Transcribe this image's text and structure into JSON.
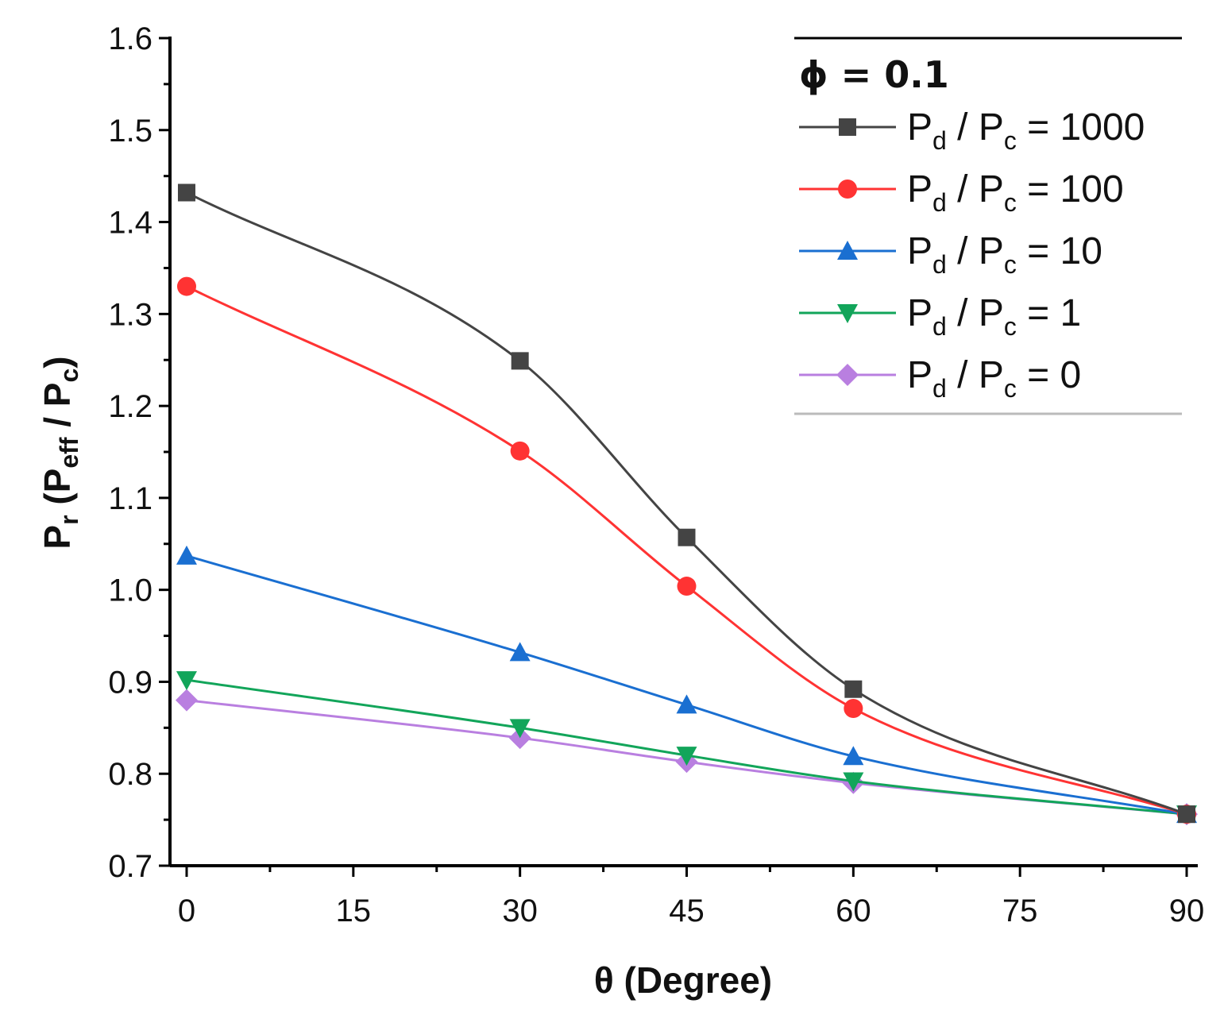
{
  "chart_data": {
    "type": "line",
    "title": "",
    "xlabel": "θ (Degree)",
    "ylabel": {
      "main": "P",
      "sub_r": "r",
      "open": " (P",
      "sub_eff": "eff",
      "slash": " / P",
      "sub_c": "c",
      "close": ")"
    },
    "xlim": [
      -1.5,
      91
    ],
    "ylim": [
      0.7,
      1.6
    ],
    "x": [
      0,
      30,
      45,
      60,
      90
    ],
    "xticks": [
      0,
      15,
      30,
      45,
      60,
      75,
      90
    ],
    "yticks": [
      0.7,
      0.8,
      0.9,
      1.0,
      1.1,
      1.2,
      1.3,
      1.4,
      1.5,
      1.6
    ],
    "xtick_labels": [
      "0",
      "15",
      "30",
      "45",
      "60",
      "75",
      "90"
    ],
    "ytick_labels": [
      "0.7",
      "0.8",
      "0.9",
      "1.0",
      "1.1",
      "1.2",
      "1.3",
      "1.4",
      "1.5",
      "1.6"
    ],
    "legend": {
      "position": "top-right",
      "title": "ϕ = 0.1",
      "label_parts": {
        "p": "P",
        "d": "d",
        "slash": " / P",
        "c": "c",
        "eq": " = "
      }
    },
    "series": [
      {
        "name": "Pd / Pc = 1000",
        "ratio": "1000",
        "marker": "square",
        "color": "#444444",
        "values": [
          1.432,
          1.249,
          1.057,
          0.892,
          0.756
        ]
      },
      {
        "name": "Pd / Pc = 100",
        "ratio": "100",
        "marker": "circle",
        "color": "#ff3333",
        "values": [
          1.33,
          1.151,
          1.004,
          0.871,
          0.756
        ]
      },
      {
        "name": "Pd / Pc = 10",
        "ratio": "10",
        "marker": "triangle-up",
        "color": "#1a6fd1",
        "values": [
          1.037,
          0.932,
          0.875,
          0.819,
          0.756
        ]
      },
      {
        "name": "Pd / Pc = 1",
        "ratio": "1",
        "marker": "triangle-down",
        "color": "#12a55a",
        "values": [
          0.902,
          0.85,
          0.82,
          0.792,
          0.756
        ]
      },
      {
        "name": "Pd / Pc = 0",
        "ratio": "0",
        "marker": "diamond",
        "color": "#b97fe0",
        "values": [
          0.88,
          0.839,
          0.813,
          0.79,
          0.756
        ]
      }
    ]
  }
}
